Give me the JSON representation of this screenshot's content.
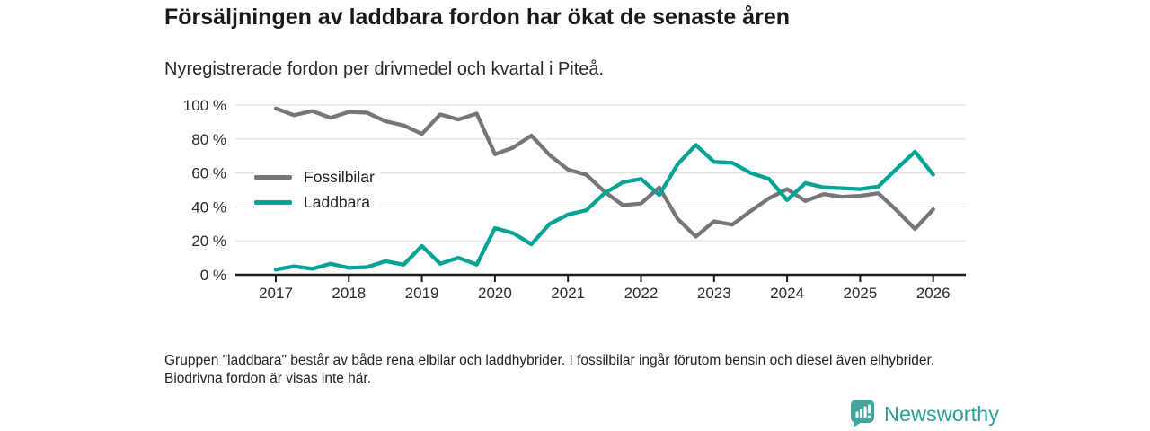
{
  "header": {
    "title": "Försäljningen av laddbara fordon har ökat de senaste åren",
    "subtitle": "Nyregistrerade fordon per drivmedel och kvartal i Piteå."
  },
  "chart_data": {
    "type": "line",
    "x_start": "2017 Q1",
    "x_end": "2026 Q1",
    "points_per_year": 4,
    "x_tick_labels": [
      "2017",
      "2018",
      "2019",
      "2020",
      "2021",
      "2022",
      "2023",
      "2024",
      "2025",
      "2026"
    ],
    "y_tick_labels": [
      "0 %",
      "20 %",
      "40 %",
      "60 %",
      "80 %",
      "100 %"
    ],
    "ylim": [
      0,
      100
    ],
    "grid": true,
    "legend_position": "inside-left",
    "series": [
      {
        "name": "Fossilbilar",
        "color": "#75767B",
        "values": [
          98,
          94,
          96.5,
          92.5,
          96,
          95.5,
          90.5,
          88,
          83,
          94.5,
          91.5,
          95,
          71,
          75,
          82,
          70.5,
          62,
          59,
          49,
          41,
          42,
          51.5,
          33,
          22.5,
          31.5,
          29.5,
          37.5,
          45,
          50.5,
          43.5,
          47.5,
          46,
          46.5,
          48,
          38,
          27,
          38.5
        ]
      },
      {
        "name": "Laddbara",
        "color": "#00A396",
        "values": [
          3,
          5,
          3.5,
          6.5,
          4,
          4.5,
          8,
          6,
          17,
          6.5,
          10,
          6,
          27.5,
          24.5,
          18,
          30,
          35.5,
          38,
          48,
          54.5,
          56.5,
          47,
          65,
          76.5,
          66.5,
          66,
          60,
          56.5,
          44,
          54,
          51.5,
          51,
          50.5,
          52,
          62.5,
          72.5,
          59
        ]
      }
    ]
  },
  "footnote": "Gruppen \"laddbara\" består av både rena elbilar och laddhybrider. I fossilbilar ingår förutom bensin och diesel även elhybrider. Biodrivna fordon är visas inte här.",
  "logo": {
    "text": "Newsworthy",
    "icon": "bar-chart-badge-icon",
    "badge_color": "#43A49D",
    "text_color": "#2F9E98"
  }
}
